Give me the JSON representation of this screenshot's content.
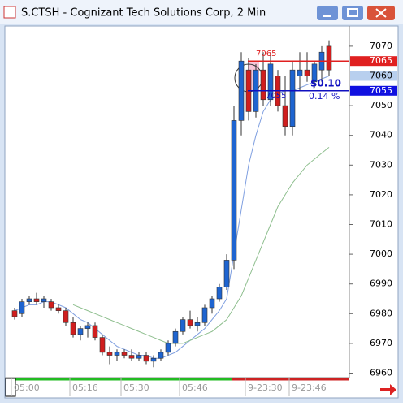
{
  "window": {
    "title": "S.CTSH - Cognizant Tech Solutions Corp, 2 Min"
  },
  "chart_data": {
    "type": "candlestick",
    "categories": [
      "05:00",
      null,
      null,
      null,
      null,
      null,
      null,
      null,
      "05:16",
      null,
      null,
      null,
      null,
      null,
      null,
      "05:30",
      null,
      null,
      null,
      null,
      null,
      null,
      null,
      "05:46",
      null,
      null,
      null,
      null,
      null,
      null,
      null,
      null,
      "9-23:30",
      null,
      null,
      null,
      null,
      null,
      "9-23:46",
      null,
      null,
      null,
      null,
      null
    ],
    "open": [
      6981,
      6980,
      6984,
      6985,
      6984,
      6984,
      6982,
      6981,
      6977,
      6973,
      6975,
      6976,
      6972,
      6967,
      6966,
      6967,
      6966,
      6965,
      6966,
      6964,
      6965,
      6967,
      6970,
      6974,
      6978,
      6976,
      6977,
      6982,
      6985,
      6989,
      6998,
      7045,
      7062,
      7048,
      7062,
      7052,
      7060,
      7050,
      7043,
      7060,
      7062,
      7058,
      7062,
      7070
    ],
    "high": [
      6982,
      6985,
      6986,
      6987,
      6986,
      6985,
      6983,
      6982,
      6979,
      6976,
      6977,
      6977,
      6973,
      6969,
      6968,
      6968,
      6968,
      6967,
      6967,
      6966,
      6968,
      6971,
      6975,
      6979,
      6981,
      6979,
      6983,
      6986,
      6990,
      7000,
      7050,
      7068,
      7066,
      7064,
      7068,
      7068,
      7062,
      7060,
      7065,
      7068,
      7068,
      7065,
      7070,
      7072
    ],
    "low": [
      6978,
      6979,
      6983,
      6983,
      6982,
      6981,
      6980,
      6976,
      6972,
      6971,
      6972,
      6971,
      6966,
      6963,
      6964,
      6965,
      6964,
      6964,
      6963,
      6962,
      6964,
      6966,
      6969,
      6973,
      6975,
      6974,
      6976,
      6980,
      6984,
      6988,
      6995,
      7040,
      7045,
      7046,
      7050,
      7050,
      7048,
      7040,
      7040,
      7055,
      7058,
      7056,
      7058,
      7060
    ],
    "close": [
      6979,
      6984,
      6985,
      6984,
      6985,
      6982,
      6981,
      6977,
      6973,
      6975,
      6976,
      6972,
      6967,
      6966,
      6967,
      6966,
      6965,
      6966,
      6964,
      6965,
      6967,
      6970,
      6974,
      6978,
      6976,
      6977,
      6982,
      6985,
      6989,
      6998,
      7045,
      7065,
      7048,
      7062,
      7052,
      7064,
      7050,
      7043,
      7062,
      7062,
      7060,
      7064,
      7068,
      7062
    ],
    "up_color": "#1e64d0",
    "down_color": "#d01e1e",
    "lines": [
      {
        "color": "#7f9fe0",
        "values": [
          6981,
          6982,
          6983,
          6983,
          6984,
          6984,
          6983,
          6982,
          6980,
          6978,
          6977,
          6975,
          6973,
          6971,
          6969,
          6968,
          6967,
          6966,
          6966,
          6965,
          6965,
          6966,
          6967,
          6969,
          6971,
          6973,
          6975,
          6978,
          6981,
          6985,
          7000,
          7015,
          7030,
          7040,
          7048,
          7052,
          7054,
          7055,
          7055,
          7056,
          7057,
          7058,
          7059,
          7060
        ]
      },
      {
        "color": "#8fbf8f",
        "values": [
          null,
          null,
          null,
          null,
          null,
          null,
          null,
          null,
          6983,
          6982,
          6981,
          6980,
          6979,
          6978,
          6977,
          6976,
          6975,
          6974,
          6973,
          6972,
          6971,
          6970,
          6970,
          6970,
          6971,
          6972,
          6973,
          6974,
          6976,
          6978,
          6982,
          6986,
          6992,
          6998,
          7004,
          7010,
          7016,
          7020,
          7024,
          7027,
          7030,
          7032,
          7034,
          7036
        ]
      }
    ],
    "ylim": [
      6958.5,
      7076.8
    ],
    "yticks": [
      6960,
      6970,
      6980,
      6990,
      7000,
      7010,
      7020,
      7030,
      7040,
      7050,
      7060,
      7070
    ],
    "upper_level": 7065,
    "lower_level": 7055,
    "change_label": "$0.10",
    "change_pct_label": "0.14 %"
  }
}
